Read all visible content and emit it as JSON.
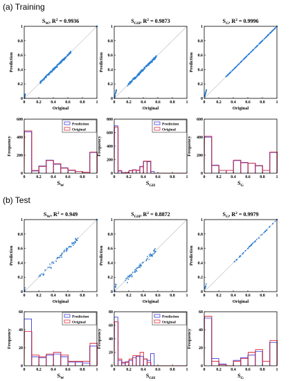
{
  "sections": [
    {
      "title": "(a) Training"
    },
    {
      "title": "(b) Test"
    }
  ],
  "colors": {
    "points": "#2a7fd4",
    "diag": "#b9b9b9",
    "prediction": "#3c3cdc",
    "original": "#dc2f3a"
  },
  "chart_data": [
    {
      "type": "scatter",
      "section": "Training",
      "variable": "S_W",
      "title_var": "W",
      "r2": "0.9936",
      "xlabel": "Original",
      "ylabel": "Prediction",
      "xlim": [
        0,
        1
      ],
      "ylim": [
        0,
        1
      ],
      "xticks": [
        "0",
        "0.2",
        "0.4",
        "0.6",
        "0.8",
        "1"
      ],
      "yticks": [
        "0",
        "0.2",
        "0.4",
        "0.6",
        "0.8",
        "1"
      ],
      "points_summary": "dense cloud along y=x from 0.2 to 0.65, cluster near 0, point at (1,1)",
      "spread": 0.03,
      "clusters": [
        [
          0.0,
          0.06,
          0.1
        ],
        [
          0.22,
          0.65,
          0.9
        ]
      ],
      "corner": true
    },
    {
      "type": "scatter",
      "section": "Training",
      "variable": "S_GH",
      "title_var": "GH",
      "r2": "0.9873",
      "xlabel": "Original",
      "ylabel": "Prediction",
      "xlim": [
        0,
        1
      ],
      "ylim": [
        0,
        1
      ],
      "xticks": [
        "0",
        "0.2",
        "0.4",
        "0.6",
        "0.8",
        "1"
      ],
      "yticks": [
        "0",
        "0.2",
        "0.4",
        "0.6",
        "0.8",
        "1"
      ],
      "spread": 0.035,
      "clusters": [
        [
          0.0,
          0.12,
          0.15
        ],
        [
          0.18,
          0.58,
          0.85
        ]
      ],
      "corner": false
    },
    {
      "type": "scatter",
      "section": "Training",
      "variable": "S_G",
      "title_var": "G",
      "r2": "0.9996",
      "xlabel": "Original",
      "ylabel": "Prediction",
      "xlim": [
        0,
        1
      ],
      "ylim": [
        0,
        1
      ],
      "xticks": [
        "0",
        "0.2",
        "0.4",
        "0.6",
        "0.8",
        "1"
      ],
      "yticks": [
        "0",
        "0.2",
        "0.4",
        "0.6",
        "0.8",
        "1"
      ],
      "spread": 0.008,
      "clusters": [
        [
          0.02,
          0.12,
          0.15
        ],
        [
          0.3,
          0.98,
          0.85
        ]
      ],
      "corner": true
    },
    {
      "type": "histogram",
      "section": "Training",
      "variable": "S_W",
      "xlabel_var": "W",
      "ylabel": "Frequency",
      "legend": [
        "Prediction",
        "Original"
      ],
      "xlim": [
        0,
        1
      ],
      "ylim": [
        0,
        600
      ],
      "xticks": [
        "0",
        "0.2",
        "0.4",
        "0.6",
        "0.8",
        "1"
      ],
      "yticks": [
        "0",
        "200",
        "400",
        "600"
      ],
      "bin_width": 0.1,
      "original": [
        470,
        30,
        75,
        140,
        105,
        55,
        35,
        20,
        10,
        235
      ],
      "prediction": [
        460,
        25,
        80,
        145,
        100,
        60,
        30,
        20,
        10,
        230
      ]
    },
    {
      "type": "histogram",
      "section": "Training",
      "variable": "S_GH",
      "xlabel_var": "GH",
      "ylabel": "Frequency",
      "legend": [
        "Prediction",
        "Original"
      ],
      "xlim": [
        0,
        1
      ],
      "ylim": [
        0,
        800
      ],
      "xticks": [
        "0",
        "0.2",
        "0.4",
        "0.6",
        "0.8",
        "1"
      ],
      "yticks": [
        "0",
        "200",
        "400",
        "600",
        "800"
      ],
      "bin_width": 0.05,
      "original": [
        680,
        40,
        5,
        10,
        40,
        45,
        45,
        95,
        180,
        180,
        0,
        0,
        0,
        0,
        0,
        0,
        0,
        0,
        0,
        0
      ],
      "prediction": [
        700,
        30,
        8,
        12,
        35,
        50,
        40,
        100,
        175,
        170,
        25,
        0,
        0,
        0,
        0,
        0,
        0,
        0,
        0,
        0
      ]
    },
    {
      "type": "histogram",
      "section": "Training",
      "variable": "S_G",
      "xlabel_var": "G",
      "ylabel": "Frequency",
      "legend": [],
      "xlim": [
        0,
        1
      ],
      "ylim": [
        0,
        600
      ],
      "xticks": [
        "0",
        "0.2",
        "0.4",
        "0.6",
        "0.8",
        "1"
      ],
      "yticks": [
        "0",
        "200",
        "400",
        "600"
      ],
      "bin_width": 0.1,
      "original": [
        410,
        85,
        30,
        30,
        145,
        115,
        110,
        85,
        30,
        235
      ],
      "prediction": [
        400,
        90,
        30,
        30,
        140,
        120,
        110,
        80,
        30,
        230
      ]
    },
    {
      "type": "scatter",
      "section": "Test",
      "variable": "S_W",
      "title_var": "W",
      "r2": "0.949",
      "xlabel": "Original",
      "ylabel": "Prediction",
      "xlim": [
        0,
        1
      ],
      "ylim": [
        0,
        1
      ],
      "xticks": [
        "0",
        "0.2",
        "0.4",
        "0.6",
        "0.8",
        "1"
      ],
      "yticks": [
        "0",
        "0.2",
        "0.4",
        "0.6",
        "0.8",
        "1"
      ],
      "spread": 0.07,
      "clusters": [
        [
          0.0,
          0.05,
          0.1
        ],
        [
          0.2,
          0.75,
          0.9
        ]
      ],
      "corner": true
    },
    {
      "type": "scatter",
      "section": "Test",
      "variable": "S_GH",
      "title_var": "GH",
      "r2": "0.8872",
      "xlabel": "Original",
      "ylabel": "Prediction",
      "xlim": [
        0,
        1
      ],
      "ylim": [
        0,
        1
      ],
      "xticks": [
        "0",
        "0.2",
        "0.4",
        "0.6",
        "0.8",
        "1"
      ],
      "yticks": [
        "0",
        "0.2",
        "0.4",
        "0.6",
        "0.8",
        "1"
      ],
      "spread": 0.09,
      "clusters": [
        [
          0.0,
          0.1,
          0.15
        ],
        [
          0.15,
          0.58,
          0.85
        ]
      ],
      "corner": false
    },
    {
      "type": "scatter",
      "section": "Test",
      "variable": "S_G",
      "title_var": "G",
      "r2": "0.9979",
      "xlabel": "Original",
      "ylabel": "Prediction",
      "xlim": [
        0,
        1
      ],
      "ylim": [
        0,
        1
      ],
      "xticks": [
        "0",
        "0.2",
        "0.4",
        "0.6",
        "0.8",
        "1"
      ],
      "yticks": [
        "0",
        "0.2",
        "0.4",
        "0.6",
        "0.8",
        "1"
      ],
      "spread": 0.015,
      "clusters": [
        [
          0.02,
          0.12,
          0.2
        ],
        [
          0.4,
          0.98,
          0.8
        ]
      ],
      "corner": true
    },
    {
      "type": "histogram",
      "section": "Test",
      "variable": "S_W",
      "xlabel_var": "W",
      "ylabel": "Frequency",
      "legend": [
        "Prediction",
        "Original"
      ],
      "xlim": [
        0,
        1
      ],
      "ylim": [
        0,
        60
      ],
      "xticks": [
        "0",
        "0.2",
        "0.4",
        "0.6",
        "0.8",
        "1"
      ],
      "yticks": [
        "0",
        "20",
        "40",
        "60"
      ],
      "bin_width": 0.1,
      "original": [
        38,
        12,
        10,
        13,
        15,
        12,
        5,
        5,
        5,
        25
      ],
      "prediction": [
        52,
        10,
        9,
        12,
        13,
        10,
        4,
        4,
        3,
        22
      ]
    },
    {
      "type": "histogram",
      "section": "Test",
      "variable": "S_GH",
      "xlabel_var": "GH",
      "ylabel": "Frequency",
      "legend": [
        "Prediction",
        "Original"
      ],
      "xlim": [
        0,
        1
      ],
      "ylim": [
        0,
        80
      ],
      "xticks": [
        "0",
        "0.2",
        "0.4",
        "0.6",
        "0.8",
        "1"
      ],
      "yticks": [
        "0",
        "20",
        "40",
        "60",
        "80"
      ],
      "bin_width": 0.05,
      "original": [
        65,
        10,
        5,
        5,
        10,
        15,
        15,
        20,
        10,
        5,
        0,
        0,
        0,
        0,
        0,
        0,
        0,
        0,
        0,
        0
      ],
      "prediction": [
        72,
        8,
        4,
        6,
        8,
        12,
        14,
        14,
        10,
        8,
        18,
        0,
        0,
        0,
        0,
        0,
        0,
        0,
        0,
        0
      ]
    },
    {
      "type": "histogram",
      "section": "Test",
      "variable": "S_G",
      "xlabel_var": "G",
      "ylabel": "Frequency",
      "legend": [],
      "xlim": [
        0,
        1
      ],
      "ylim": [
        0,
        60
      ],
      "xticks": [
        "0",
        "0.2",
        "0.4",
        "0.6",
        "0.8",
        "1"
      ],
      "yticks": [
        "0",
        "20",
        "40",
        "60"
      ],
      "bin_width": 0.1,
      "original": [
        55,
        5,
        1,
        0,
        5,
        8,
        15,
        18,
        5,
        28
      ],
      "prediction": [
        53,
        8,
        2,
        0,
        6,
        9,
        12,
        16,
        5,
        26
      ]
    }
  ]
}
